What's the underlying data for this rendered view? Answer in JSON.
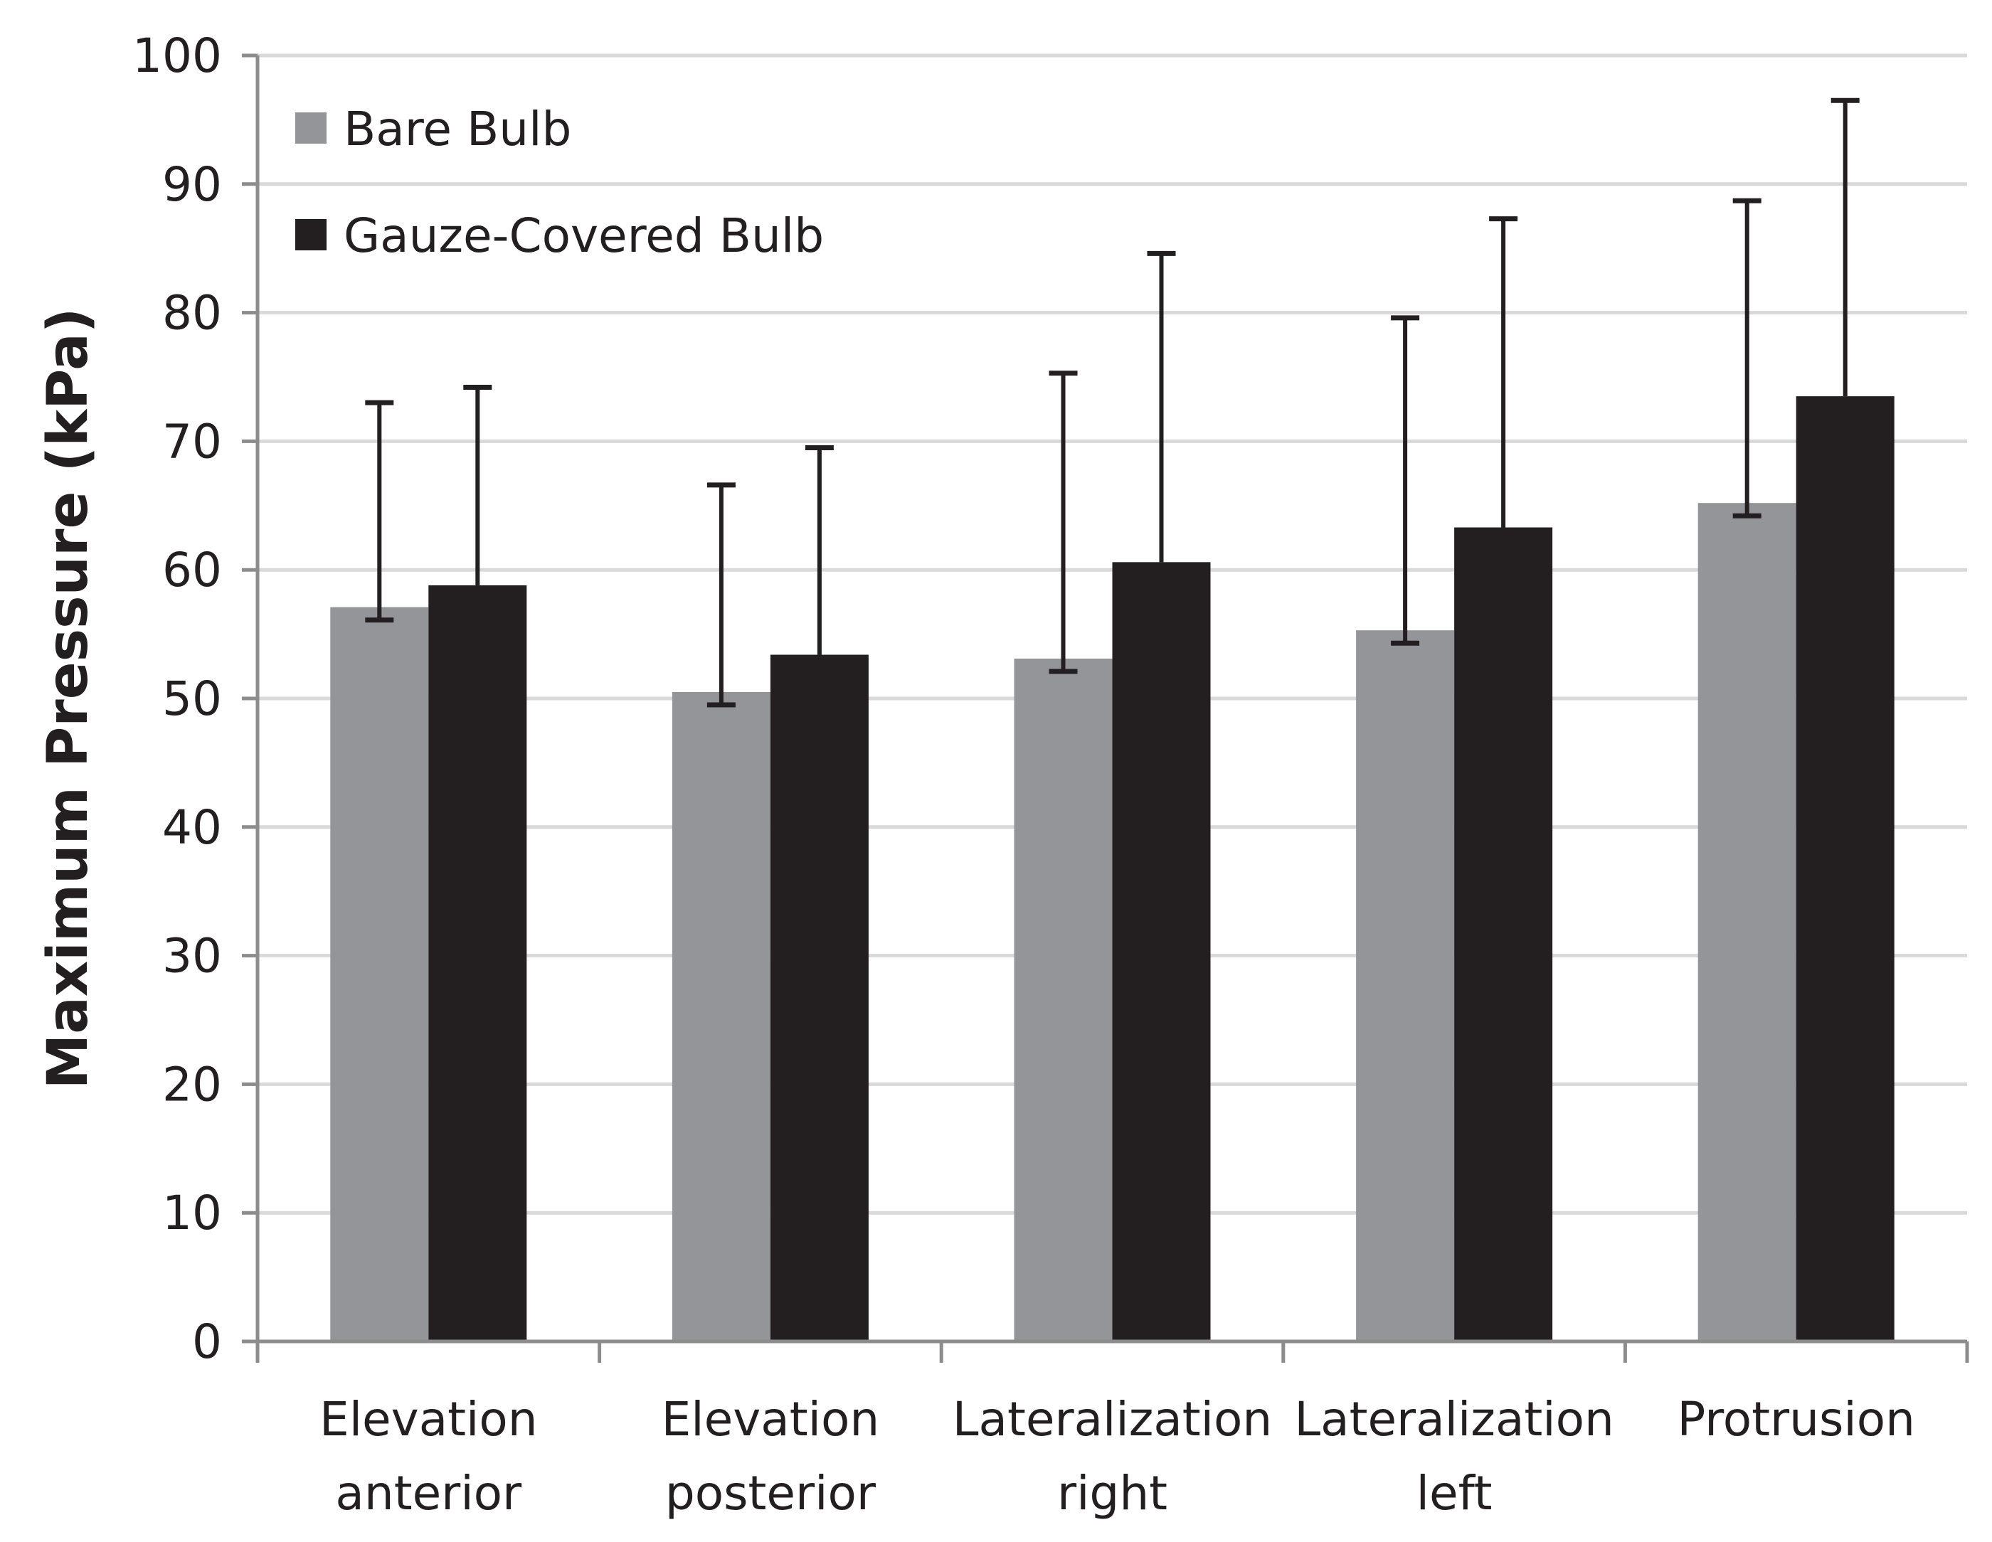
{
  "chart_data": {
    "type": "bar",
    "title": "",
    "xlabel": "",
    "ylabel": "Maximum Pressure (kPa)",
    "ylim": [
      0,
      100
    ],
    "yticks": [
      0,
      10,
      20,
      30,
      40,
      50,
      60,
      70,
      80,
      90,
      100
    ],
    "grid": true,
    "legend_position": "top-left",
    "categories": [
      [
        "Elevation",
        "anterior"
      ],
      [
        "Elevation",
        "posterior"
      ],
      [
        "Lateralization",
        "right"
      ],
      [
        "Lateralization",
        "left"
      ],
      [
        "Protrusion"
      ]
    ],
    "series": [
      {
        "name": "Bare Bulb",
        "color": "#939598",
        "values": [
          57.1,
          50.5,
          53.1,
          55.3,
          65.2
        ],
        "error_upper": [
          73.0,
          66.6,
          75.3,
          79.6,
          88.7
        ],
        "error_lower": [
          56.1,
          49.5,
          52.1,
          54.3,
          64.2
        ]
      },
      {
        "name": "Gauze-Covered Bulb",
        "color": "#231f20",
        "values": [
          58.8,
          53.4,
          60.6,
          63.3,
          73.5
        ],
        "error_upper": [
          74.2,
          69.5,
          84.6,
          87.3,
          96.5
        ],
        "error_lower": null
      }
    ]
  }
}
